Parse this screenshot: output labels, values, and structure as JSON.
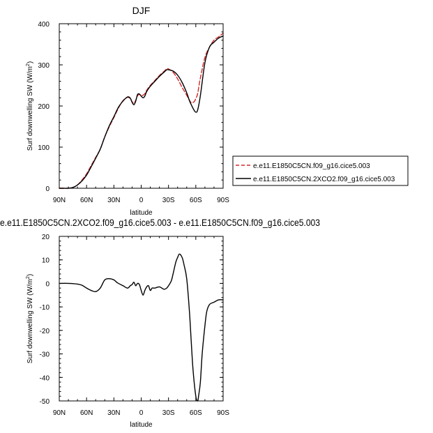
{
  "chart_data": [
    {
      "type": "line",
      "title": "DJF",
      "xlabel": "latitude",
      "ylabel": "Surf downwelling SW (W/m",
      "ylabel_sup": "2",
      "ylabel_close": ")",
      "xlim": [
        -90,
        90
      ],
      "ylim": [
        0,
        400
      ],
      "xticks": [
        -90,
        -60,
        -30,
        0,
        30,
        60,
        90
      ],
      "xtick_labels": [
        "90N",
        "60N",
        "30N",
        "0",
        "30S",
        "60S",
        "90S"
      ],
      "yticks": [
        0,
        100,
        200,
        300,
        400
      ],
      "ytick_labels": [
        "0",
        "100",
        "200",
        "300",
        "400"
      ],
      "legend_position": "right",
      "series": [
        {
          "name": "e.e11.E1850C5CN.f09_g16.cice5.003",
          "color": "#d62728",
          "dash": "dashed",
          "x": [
            -90,
            -85,
            -80,
            -75,
            -70,
            -65,
            -60,
            -55,
            -50,
            -45,
            -40,
            -35,
            -30,
            -25,
            -20,
            -15,
            -12,
            -10,
            -8,
            -6,
            -4,
            -2,
            0,
            2,
            4,
            6,
            10,
            15,
            20,
            25,
            28,
            30,
            35,
            40,
            45,
            50,
            53,
            55,
            58,
            60,
            62,
            65,
            70,
            75,
            80,
            85,
            90
          ],
          "y": [
            0,
            0,
            0,
            2,
            8,
            20,
            35,
            55,
            75,
            95,
            125,
            150,
            172,
            195,
            213,
            221,
            218,
            210,
            206,
            214,
            225,
            228,
            226,
            226,
            230,
            238,
            250,
            262,
            274,
            284,
            290,
            290,
            282,
            266,
            245,
            226,
            214,
            208,
            210,
            218,
            230,
            268,
            318,
            343,
            360,
            368,
            377
          ]
        },
        {
          "name": "e.e11.E1850C5CN.2XCO2.f09_g16.cice5.003",
          "color": "#000000",
          "dash": "solid",
          "x": [
            -90,
            -85,
            -80,
            -75,
            -70,
            -65,
            -60,
            -55,
            -50,
            -45,
            -40,
            -35,
            -30,
            -25,
            -20,
            -15,
            -12,
            -10,
            -8,
            -6,
            -4,
            -2,
            0,
            2,
            4,
            6,
            10,
            15,
            20,
            25,
            28,
            30,
            35,
            40,
            45,
            50,
            53,
            55,
            58,
            60,
            62,
            65,
            70,
            75,
            80,
            85,
            90
          ],
          "y": [
            0,
            0,
            0,
            2,
            8,
            18,
            32,
            52,
            73,
            95,
            125,
            152,
            174,
            197,
            212,
            222,
            219,
            209,
            203,
            212,
            228,
            229,
            224,
            220,
            224,
            235,
            248,
            260,
            272,
            282,
            288,
            288,
            285,
            275,
            257,
            232,
            213,
            203,
            190,
            185,
            190,
            225,
            305,
            343,
            355,
            365,
            370
          ]
        }
      ]
    },
    {
      "type": "line",
      "title": "e.e11.E1850C5CN.2XCO2.f09_g16.cice5.003 - e.e11.E1850C5CN.f09_g16.cice5.003",
      "xlabel": "latitude",
      "ylabel": "Surf downwelling SW (W/m",
      "ylabel_sup": "2",
      "ylabel_close": ")",
      "xlim": [
        -90,
        90
      ],
      "ylim": [
        -50,
        20
      ],
      "xticks": [
        -90,
        -60,
        -30,
        0,
        30,
        60,
        90
      ],
      "xtick_labels": [
        "90N",
        "60N",
        "30N",
        "0",
        "30S",
        "60S",
        "90S"
      ],
      "yticks": [
        -50,
        -40,
        -30,
        -20,
        -10,
        0,
        10,
        20
      ],
      "ytick_labels": [
        "-50",
        "-40",
        "-30",
        "-20",
        "-10",
        "0",
        "10",
        "20"
      ],
      "series": [
        {
          "color": "#000000",
          "dash": "solid",
          "x": [
            -90,
            -80,
            -70,
            -65,
            -60,
            -55,
            -50,
            -45,
            -40,
            -35,
            -30,
            -27,
            -25,
            -20,
            -15,
            -12,
            -10,
            -8,
            -6,
            -4,
            -2,
            0,
            2,
            4,
            6,
            8,
            10,
            12,
            15,
            20,
            25,
            28,
            30,
            33,
            35,
            38,
            40,
            42,
            45,
            47,
            50,
            53,
            55,
            57,
            60,
            62,
            63,
            65,
            67,
            70,
            72,
            75,
            80,
            85,
            90
          ],
          "y": [
            0,
            0,
            -0.3,
            -0.8,
            -2,
            -3,
            -3.5,
            -2,
            1.5,
            2,
            1.5,
            0.5,
            0,
            -1,
            -2,
            -1,
            -0.5,
            0.5,
            -1,
            0,
            -0.5,
            -3,
            -5,
            -3,
            -1.5,
            -1,
            -3,
            -2,
            -2,
            -1.5,
            -2.5,
            -2,
            -1,
            1,
            4,
            9,
            11,
            12.5,
            11,
            8,
            2,
            -12,
            -25,
            -37,
            -48,
            -50,
            -48,
            -42,
            -30,
            -18,
            -12,
            -9,
            -8,
            -7,
            -7
          ]
        }
      ]
    }
  ]
}
